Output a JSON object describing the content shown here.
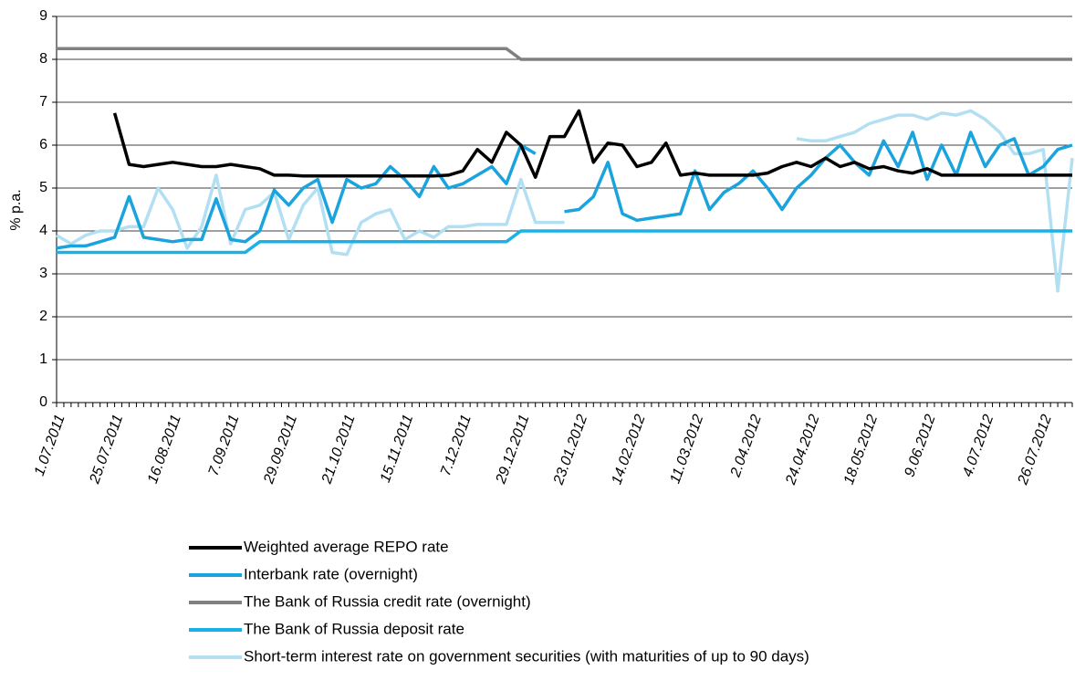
{
  "chart_data": {
    "type": "line",
    "ylabel": "% p.a.",
    "ylim": [
      0,
      9
    ],
    "yticks": [
      0,
      1,
      2,
      3,
      4,
      5,
      6,
      7,
      8,
      9
    ],
    "grid": true,
    "legend": "bottom",
    "categories": [
      "1.07.2011",
      null,
      null,
      null,
      "25.07.2011",
      null,
      null,
      null,
      "16.08.2011",
      null,
      null,
      null,
      "7.09.2011",
      null,
      null,
      null,
      "29.09.2011",
      null,
      null,
      null,
      "21.10.2011",
      null,
      null,
      null,
      "15.11.2011",
      null,
      null,
      null,
      "7.12.2011",
      null,
      null,
      null,
      "29.12.2011",
      null,
      null,
      null,
      "23.01.2012",
      null,
      null,
      null,
      "14.02.2012",
      null,
      null,
      null,
      "11.03.2012",
      null,
      null,
      null,
      "2.04.2012",
      null,
      null,
      null,
      "24.04.2012",
      null,
      null,
      null,
      "18.05.2012",
      null,
      null,
      null,
      "9.06.2012",
      null,
      null,
      null,
      "4.07.2012",
      null,
      null,
      null,
      "26.07.2012",
      null,
      null
    ],
    "series": [
      {
        "name": "Weighted average REPO rate",
        "color": "#000000",
        "values": [
          null,
          null,
          null,
          null,
          6.75,
          5.55,
          5.5,
          5.55,
          5.6,
          5.55,
          5.5,
          5.5,
          5.55,
          5.5,
          5.45,
          5.3,
          5.3,
          5.28,
          5.28,
          5.28,
          5.28,
          5.28,
          5.28,
          5.28,
          5.28,
          5.28,
          5.28,
          5.3,
          5.4,
          5.9,
          5.6,
          6.3,
          6.0,
          5.25,
          6.2,
          6.2,
          6.8,
          5.6,
          6.05,
          6.0,
          5.5,
          5.6,
          6.05,
          5.3,
          5.35,
          5.3,
          5.3,
          5.3,
          5.3,
          5.35,
          5.5,
          5.6,
          5.5,
          5.7,
          5.5,
          5.6,
          5.45,
          5.5,
          5.4,
          5.35,
          5.45,
          5.3,
          5.3,
          5.3,
          5.3,
          5.3,
          5.3,
          5.3,
          5.3,
          5.3,
          5.3
        ]
      },
      {
        "name": "Interbank rate (overnight)",
        "color": "#1aa3dc",
        "values": [
          3.6,
          3.65,
          3.65,
          3.75,
          3.85,
          4.8,
          3.85,
          3.8,
          3.75,
          3.8,
          3.8,
          4.75,
          3.8,
          3.75,
          4.0,
          4.95,
          4.6,
          5.0,
          5.2,
          4.2,
          5.2,
          5.0,
          5.1,
          5.5,
          5.2,
          4.8,
          5.5,
          5.0,
          5.1,
          5.3,
          5.5,
          5.1,
          6.0,
          5.8,
          null,
          4.45,
          4.5,
          4.8,
          5.6,
          4.4,
          4.25,
          4.3,
          4.35,
          4.4,
          5.4,
          4.5,
          4.9,
          5.1,
          5.4,
          5.0,
          4.5,
          5.0,
          5.3,
          5.7,
          6.0,
          5.6,
          5.3,
          6.1,
          5.5,
          6.3,
          5.2,
          6.0,
          5.3,
          6.3,
          5.5,
          6.0,
          6.15,
          5.3,
          5.5,
          5.9,
          6.0
        ]
      },
      {
        "name": "The Bank of Russia credit rate (overnight)",
        "color": "#808080",
        "values": [
          8.25,
          8.25,
          8.25,
          8.25,
          8.25,
          8.25,
          8.25,
          8.25,
          8.25,
          8.25,
          8.25,
          8.25,
          8.25,
          8.25,
          8.25,
          8.25,
          8.25,
          8.25,
          8.25,
          8.25,
          8.25,
          8.25,
          8.25,
          8.25,
          8.25,
          8.25,
          8.25,
          8.25,
          8.25,
          8.25,
          8.25,
          8.25,
          8.0,
          8.0,
          8.0,
          8.0,
          8.0,
          8.0,
          8.0,
          8.0,
          8.0,
          8.0,
          8.0,
          8.0,
          8.0,
          8.0,
          8.0,
          8.0,
          8.0,
          8.0,
          8.0,
          8.0,
          8.0,
          8.0,
          8.0,
          8.0,
          8.0,
          8.0,
          8.0,
          8.0,
          8.0,
          8.0,
          8.0,
          8.0,
          8.0,
          8.0,
          8.0,
          8.0,
          8.0,
          8.0,
          8.0
        ]
      },
      {
        "name": "The Bank of Russia deposit rate",
        "color": "#19b2e6",
        "values": [
          3.5,
          3.5,
          3.5,
          3.5,
          3.5,
          3.5,
          3.5,
          3.5,
          3.5,
          3.5,
          3.5,
          3.5,
          3.5,
          3.5,
          3.75,
          3.75,
          3.75,
          3.75,
          3.75,
          3.75,
          3.75,
          3.75,
          3.75,
          3.75,
          3.75,
          3.75,
          3.75,
          3.75,
          3.75,
          3.75,
          3.75,
          3.75,
          4.0,
          4.0,
          4.0,
          4.0,
          4.0,
          4.0,
          4.0,
          4.0,
          4.0,
          4.0,
          4.0,
          4.0,
          4.0,
          4.0,
          4.0,
          4.0,
          4.0,
          4.0,
          4.0,
          4.0,
          4.0,
          4.0,
          4.0,
          4.0,
          4.0,
          4.0,
          4.0,
          4.0,
          4.0,
          4.0,
          4.0,
          4.0,
          4.0,
          4.0,
          4.0,
          4.0,
          4.0,
          4.0,
          4.0
        ]
      },
      {
        "name": "Short-term interest rate on government securities (with maturities of up to 90 days)",
        "color": "#b3dff2",
        "values": [
          3.9,
          3.7,
          3.9,
          4.0,
          4.0,
          4.1,
          4.1,
          5.0,
          4.5,
          3.6,
          4.1,
          5.3,
          3.7,
          4.5,
          4.6,
          4.9,
          3.8,
          4.6,
          5.0,
          3.5,
          3.45,
          4.2,
          4.4,
          4.5,
          3.8,
          4.0,
          3.85,
          4.1,
          4.1,
          4.15,
          4.15,
          4.15,
          5.2,
          4.2,
          4.2,
          4.2,
          null,
          null,
          null,
          null,
          null,
          null,
          null,
          null,
          null,
          null,
          null,
          null,
          null,
          null,
          null,
          6.15,
          6.1,
          6.1,
          6.2,
          6.3,
          6.5,
          6.6,
          6.7,
          6.7,
          6.6,
          6.75,
          6.7,
          6.8,
          6.6,
          6.3,
          5.8,
          5.8,
          5.9,
          2.6,
          5.7
        ]
      }
    ]
  }
}
